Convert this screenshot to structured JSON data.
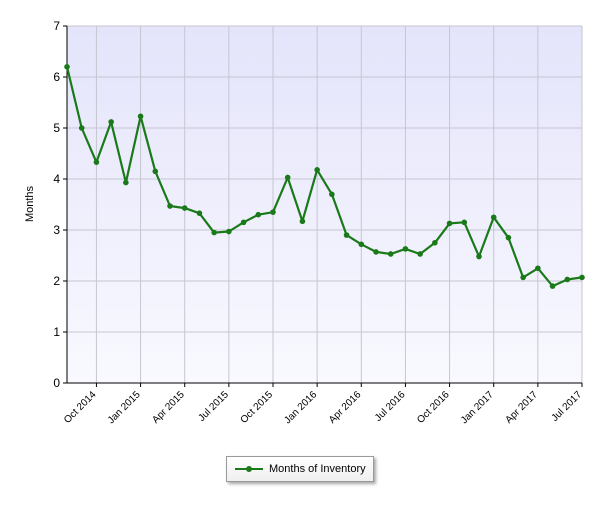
{
  "chart_data": {
    "type": "line",
    "ylabel": "Months",
    "xlabel": "",
    "ylim": [
      0,
      7
    ],
    "y_ticks": [
      0,
      1,
      2,
      3,
      4,
      5,
      6,
      7
    ],
    "x_start": "2014-08",
    "x_end": "2017-07",
    "x_tick_labels": [
      {
        "date": "2014-10",
        "label": "Oct 2014"
      },
      {
        "date": "2015-01",
        "label": "Jan 2015"
      },
      {
        "date": "2015-04",
        "label": "Apr 2015"
      },
      {
        "date": "2015-07",
        "label": "Jul 2015"
      },
      {
        "date": "2015-10",
        "label": "Oct 2015"
      },
      {
        "date": "2016-01",
        "label": "Jan 2016"
      },
      {
        "date": "2016-04",
        "label": "Apr 2016"
      },
      {
        "date": "2016-07",
        "label": "Jul 2016"
      },
      {
        "date": "2016-10",
        "label": "Oct 2016"
      },
      {
        "date": "2017-01",
        "label": "Jan 2017"
      },
      {
        "date": "2017-04",
        "label": "Apr 2017"
      },
      {
        "date": "2017-07",
        "label": "Jul 2017"
      }
    ],
    "grid": true,
    "legend_position": "bottom-center",
    "series": [
      {
        "name": "Months of Inventory",
        "color": "#1a7a1a",
        "x": [
          "2014-08",
          "2014-09",
          "2014-10",
          "2014-11",
          "2014-12",
          "2015-01",
          "2015-02",
          "2015-03",
          "2015-04",
          "2015-05",
          "2015-06",
          "2015-07",
          "2015-08",
          "2015-09",
          "2015-10",
          "2015-11",
          "2015-12",
          "2016-01",
          "2016-02",
          "2016-03",
          "2016-04",
          "2016-05",
          "2016-06",
          "2016-07",
          "2016-08",
          "2016-09",
          "2016-10",
          "2016-11",
          "2016-12",
          "2017-01",
          "2017-02",
          "2017-03",
          "2017-04",
          "2017-05",
          "2017-06",
          "2017-07"
        ],
        "values": [
          6.2,
          5.0,
          4.33,
          5.12,
          3.93,
          5.23,
          4.15,
          3.47,
          3.43,
          3.33,
          2.95,
          2.97,
          3.15,
          3.3,
          3.35,
          4.03,
          3.17,
          4.18,
          3.7,
          2.9,
          2.72,
          2.57,
          2.53,
          2.63,
          2.53,
          2.75,
          3.13,
          3.15,
          2.48,
          3.25,
          2.85,
          2.07,
          2.25,
          1.9,
          2.03,
          2.07
        ]
      }
    ]
  },
  "colors": {
    "plot_background_top": "#e4e4fb",
    "plot_background_bottom": "#f9f9ff",
    "grid": "#c6c6d2",
    "series": "#1a7a1a"
  }
}
